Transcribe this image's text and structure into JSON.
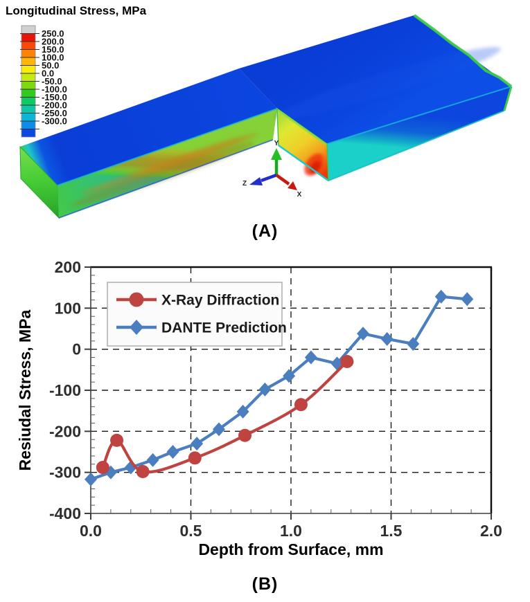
{
  "panelA": {
    "title": "Longitudinal Stress, MPa",
    "label": "(A)",
    "legend": {
      "cap_color": "#d0d0d0",
      "values": [
        "250.0",
        "200.0",
        "150.0",
        "100.0",
        "50.0",
        "0.0",
        "-50.0",
        "-100.0",
        "-150.0",
        "-200.0",
        "-250.0",
        "-300.0"
      ],
      "colors": [
        "#e81408",
        "#fb4905",
        "#ff8307",
        "#feb609",
        "#f8ec0b",
        "#c6e912",
        "#7fd90f",
        "#2fcb1d",
        "#0fca62",
        "#0cc6a4",
        "#0db6d9",
        "#0f8ce8"
      ],
      "below_color": "#0b49e6"
    },
    "triad": {
      "x": "X",
      "y": "Y",
      "z": "Z"
    },
    "model_colors": {
      "top_surface": "#0b44dc",
      "side_face": "#a89e26",
      "end_cap": "#46cc35",
      "cut_face_hot": "#e83810",
      "edge_cyan": "#17b8d8",
      "edge_green": "#3fca4a"
    }
  },
  "panelB": {
    "label": "(B)"
  },
  "chart_data": {
    "type": "line",
    "title": "",
    "xlabel": "Depth from Surface, mm",
    "ylabel": "Resiudal Stress, MPa",
    "xlim": [
      0.0,
      2.0
    ],
    "ylim": [
      -400,
      200
    ],
    "x_major_ticks": [
      0.0,
      0.5,
      1.0,
      1.5,
      2.0
    ],
    "x_tick_labels": [
      "0.0",
      "0.5",
      "1.0",
      "1.5",
      "2.0"
    ],
    "y_major_ticks": [
      200,
      100,
      0,
      -100,
      -200,
      -300,
      -400
    ],
    "y_tick_labels": [
      "200",
      "100",
      "0",
      "-100",
      "-200",
      "-300",
      "-400"
    ],
    "x_minor_step": 0.1,
    "y_minor_step": 20,
    "grid": "dashed",
    "legend_position": "top-left",
    "series": [
      {
        "name": "X-Ray Diffraction",
        "color": "#bf4340",
        "marker": "circle",
        "smooth": true,
        "points": [
          [
            0.06,
            -288
          ],
          [
            0.13,
            -222
          ],
          [
            0.26,
            -298
          ],
          [
            0.52,
            -265
          ],
          [
            0.77,
            -210
          ],
          [
            1.05,
            -135
          ],
          [
            1.28,
            -30
          ]
        ]
      },
      {
        "name": "DANTE Prediction",
        "color": "#4a7ebf",
        "marker": "diamond",
        "smooth": false,
        "points": [
          [
            0.0,
            -317
          ],
          [
            0.1,
            -300
          ],
          [
            0.2,
            -288
          ],
          [
            0.31,
            -270
          ],
          [
            0.41,
            -250
          ],
          [
            0.53,
            -230
          ],
          [
            0.64,
            -195
          ],
          [
            0.76,
            -152
          ],
          [
            0.87,
            -98
          ],
          [
            0.99,
            -65
          ],
          [
            1.1,
            -20
          ],
          [
            1.23,
            -35
          ],
          [
            1.36,
            38
          ],
          [
            1.48,
            25
          ],
          [
            1.61,
            13
          ],
          [
            1.75,
            128
          ],
          [
            1.88,
            122
          ]
        ]
      }
    ]
  }
}
